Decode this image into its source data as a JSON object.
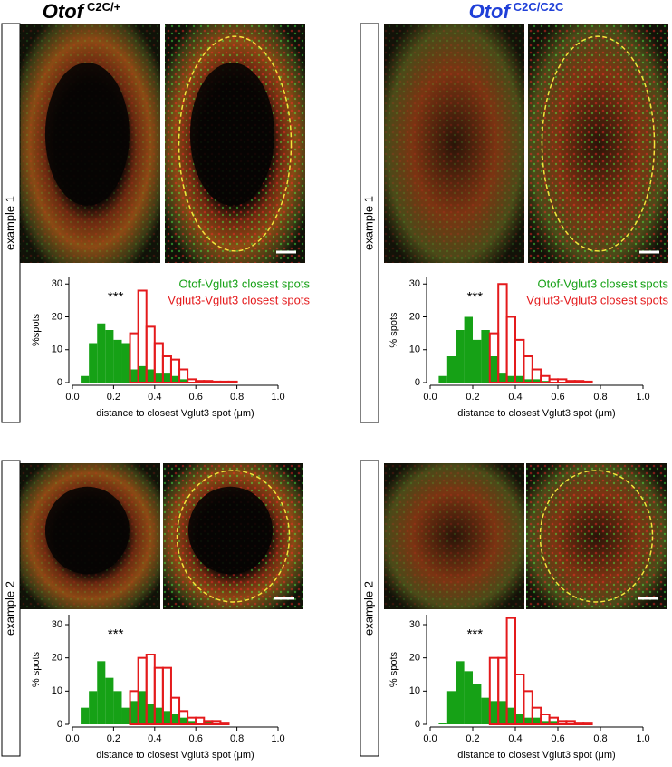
{
  "columns": [
    {
      "gene": "Otof",
      "genotype": "C2C/+",
      "color": "#000000"
    },
    {
      "gene": "Otof",
      "genotype": "C2C/C2C",
      "color": "#1f3fd8"
    }
  ],
  "row_labels": [
    "example 1",
    "example 2"
  ],
  "chart_data": [
    {
      "type": "histogram",
      "annotation": "***",
      "xlabel": "distance to closest Vglut3 spot (μm)",
      "ylabel": "%spots",
      "bins": [
        0,
        0.04,
        0.08,
        0.12,
        0.16,
        0.2,
        0.24,
        0.28,
        0.32,
        0.36,
        0.4,
        0.44,
        0.48,
        0.52,
        0.56,
        0.6,
        0.64,
        0.68,
        0.72,
        0.76,
        0.8
      ],
      "xlim": [
        0,
        1
      ],
      "ylim": [
        0,
        32
      ],
      "xticks": [
        {
          "value": 0,
          "label": "0.0"
        },
        0.2,
        0.4,
        0.6,
        0.8,
        {
          "value": 1,
          "label": "1.0"
        }
      ],
      "yticks": [
        0,
        10,
        20,
        30
      ],
      "series": [
        {
          "name": "Otof-Vglut3 closest spots",
          "color": "#16a116",
          "fill": true,
          "values": [
            0,
            2,
            12,
            18,
            16,
            13,
            12,
            4,
            5,
            4,
            3,
            3,
            2,
            1,
            0,
            0,
            0,
            0,
            0,
            0
          ]
        },
        {
          "name": "Vglut3-Vglut3 closest spots",
          "color": "#e41a1c",
          "fill": false,
          "values": [
            0,
            0,
            0,
            0,
            0,
            0,
            0,
            15,
            28,
            17,
            12,
            8,
            7,
            4,
            1,
            0.5,
            0.5,
            0.3,
            0.3,
            0.3
          ]
        }
      ]
    },
    {
      "type": "histogram",
      "annotation": "***",
      "xlabel": "distance to closest Vglut3 spot (μm)",
      "ylabel": "% spots",
      "bins": [
        0,
        0.04,
        0.08,
        0.12,
        0.16,
        0.2,
        0.24,
        0.28,
        0.32,
        0.36,
        0.4,
        0.44,
        0.48,
        0.52,
        0.56,
        0.6,
        0.64,
        0.68,
        0.72,
        0.76,
        0.8
      ],
      "xlim": [
        0,
        1
      ],
      "ylim": [
        0,
        32
      ],
      "xticks": [
        {
          "value": 0,
          "label": "0.0"
        },
        0.2,
        0.4,
        0.6,
        0.8,
        {
          "value": 1,
          "label": "1.0"
        }
      ],
      "yticks": [
        0,
        10,
        20,
        30
      ],
      "series": [
        {
          "name": "Otof-Vglut3 closest spots",
          "color": "#16a116",
          "fill": true,
          "values": [
            0,
            2,
            8,
            16,
            20,
            13,
            16,
            8,
            3,
            2,
            2,
            1,
            1,
            0.5,
            0,
            0,
            0,
            0,
            0,
            0
          ]
        },
        {
          "name": "Vglut3-Vglut3 closest spots",
          "color": "#e41a1c",
          "fill": false,
          "values": [
            0,
            0,
            0,
            0,
            0,
            0,
            0,
            15,
            30,
            20,
            13,
            8,
            4,
            2,
            1,
            1,
            0.5,
            0.5,
            0.3,
            0
          ]
        }
      ]
    },
    {
      "type": "histogram",
      "annotation": "***",
      "xlabel": "distance to closest Vglut3 spot (μm)",
      "ylabel": "% spots",
      "bins": [
        0,
        0.04,
        0.08,
        0.12,
        0.16,
        0.2,
        0.24,
        0.28,
        0.32,
        0.36,
        0.4,
        0.44,
        0.48,
        0.52,
        0.56,
        0.6,
        0.64,
        0.68,
        0.72,
        0.76,
        0.8
      ],
      "xlim": [
        0,
        1
      ],
      "ylim": [
        0,
        33
      ],
      "xticks": [
        {
          "value": 0,
          "label": "0.0"
        },
        0.2,
        0.4,
        0.6,
        0.8,
        {
          "value": 1,
          "label": "1.0"
        }
      ],
      "yticks": [
        0,
        10,
        20,
        30
      ],
      "series": [
        {
          "color": "#16a116",
          "fill": true,
          "values": [
            0,
            5,
            10,
            19,
            14,
            10,
            5,
            7,
            10,
            6,
            5,
            4,
            3,
            2,
            1,
            0.5,
            1,
            0.5,
            0.5,
            0
          ]
        },
        {
          "color": "#e41a1c",
          "fill": false,
          "values": [
            0,
            0,
            0,
            0,
            0,
            0,
            0,
            10,
            20,
            21,
            17,
            17,
            8,
            4,
            2,
            2,
            1,
            1,
            0.5,
            0
          ]
        }
      ]
    },
    {
      "type": "histogram",
      "annotation": "***",
      "xlabel": "distance to closest Vglut3 spot (μm)",
      "ylabel": "% spots",
      "bins": [
        0,
        0.04,
        0.08,
        0.12,
        0.16,
        0.2,
        0.24,
        0.28,
        0.32,
        0.36,
        0.4,
        0.44,
        0.48,
        0.52,
        0.56,
        0.6,
        0.64,
        0.68,
        0.72,
        0.76,
        0.8
      ],
      "xlim": [
        0,
        1
      ],
      "ylim": [
        0,
        33
      ],
      "xticks": [
        {
          "value": 0,
          "label": "0.0"
        },
        0.2,
        0.4,
        0.6,
        0.8,
        {
          "value": 1,
          "label": "1.0"
        }
      ],
      "yticks": [
        0,
        10,
        20,
        30
      ],
      "series": [
        {
          "color": "#16a116",
          "fill": true,
          "values": [
            0,
            0.5,
            10,
            19,
            16,
            12,
            8,
            7,
            7,
            5,
            3,
            2,
            2,
            1,
            1,
            0.5,
            0.5,
            0,
            0,
            0
          ]
        },
        {
          "color": "#e41a1c",
          "fill": false,
          "values": [
            0,
            0,
            0,
            0,
            0,
            0,
            0,
            20,
            20,
            32,
            15,
            10,
            5,
            3,
            2,
            1,
            1,
            0.5,
            0.5,
            0
          ]
        }
      ]
    }
  ]
}
